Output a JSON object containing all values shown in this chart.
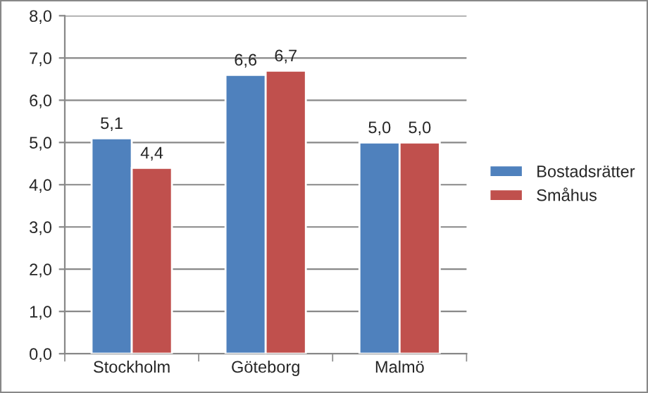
{
  "chart_data": {
    "type": "bar",
    "categories": [
      "Stockholm",
      "Göteborg",
      "Malmö"
    ],
    "series": [
      {
        "name": "Bostadsrätter",
        "color": "#4f81bd",
        "values": [
          5.1,
          6.6,
          5.0
        ],
        "value_labels": [
          "5,1",
          "6,6",
          "5,0"
        ]
      },
      {
        "name": "Småhus",
        "color": "#c0504d",
        "values": [
          4.4,
          6.7,
          5.0
        ],
        "value_labels": [
          "4,4",
          "6,7",
          "5,0"
        ]
      }
    ],
    "ylim": [
      0,
      8
    ],
    "yticks": [
      {
        "value": 0,
        "label": "0,0"
      },
      {
        "value": 1,
        "label": "1,0"
      },
      {
        "value": 2,
        "label": "2,0"
      },
      {
        "value": 3,
        "label": "3,0"
      },
      {
        "value": 4,
        "label": "4,0"
      },
      {
        "value": 5,
        "label": "5,0"
      },
      {
        "value": 6,
        "label": "6,0"
      },
      {
        "value": 7,
        "label": "7,0"
      },
      {
        "value": 8,
        "label": "8,0"
      }
    ],
    "grid": "y",
    "legend": "right"
  }
}
